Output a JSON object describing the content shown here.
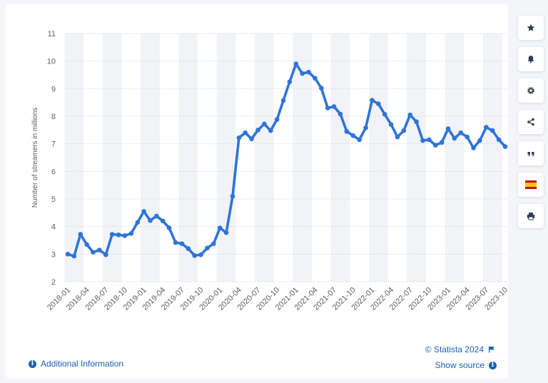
{
  "chart_data": {
    "type": "line",
    "title": "",
    "xlabel": "",
    "ylabel": "Number of streamers in millions",
    "ylim": [
      2,
      11
    ],
    "yticks": [
      2,
      3,
      4,
      5,
      6,
      7,
      8,
      9,
      10,
      11
    ],
    "grid": true,
    "line_color": "#2f74d9",
    "xtick_labels": [
      "2018-01",
      "2018-04",
      "2018-07",
      "2018-10",
      "2019-01",
      "2019-04",
      "2019-07",
      "2019-10",
      "2020-01",
      "2020-04",
      "2020-07",
      "2020-10",
      "2021-01",
      "2021-04",
      "2021-07",
      "2021-10",
      "2022-01",
      "2022-04",
      "2022-07",
      "2022-10",
      "2023-01",
      "2023-04",
      "2023-07",
      "2023-10"
    ],
    "x": [
      "2018-01",
      "2018-02",
      "2018-03",
      "2018-04",
      "2018-05",
      "2018-06",
      "2018-07",
      "2018-08",
      "2018-09",
      "2018-10",
      "2018-11",
      "2018-12",
      "2019-01",
      "2019-02",
      "2019-03",
      "2019-04",
      "2019-05",
      "2019-06",
      "2019-07",
      "2019-08",
      "2019-09",
      "2019-10",
      "2019-11",
      "2019-12",
      "2020-01",
      "2020-02",
      "2020-03",
      "2020-04",
      "2020-05",
      "2020-06",
      "2020-07",
      "2020-08",
      "2020-09",
      "2020-10",
      "2020-11",
      "2020-12",
      "2021-01",
      "2021-02",
      "2021-03",
      "2021-04",
      "2021-05",
      "2021-06",
      "2021-07",
      "2021-08",
      "2021-09",
      "2021-10",
      "2021-11",
      "2021-12",
      "2022-01",
      "2022-02",
      "2022-03",
      "2022-04",
      "2022-05",
      "2022-06",
      "2022-07",
      "2022-08",
      "2022-09",
      "2022-10",
      "2022-11",
      "2022-12",
      "2023-01",
      "2023-02",
      "2023-03",
      "2023-04",
      "2023-05",
      "2023-06",
      "2023-07",
      "2023-08",
      "2023-09",
      "2023-10"
    ],
    "series": [
      {
        "name": "",
        "values": [
          3.0,
          2.93,
          3.72,
          3.35,
          3.07,
          3.15,
          2.98,
          3.72,
          3.7,
          3.67,
          3.75,
          4.15,
          4.55,
          4.22,
          4.38,
          4.2,
          3.95,
          3.42,
          3.38,
          3.2,
          2.95,
          2.98,
          3.22,
          3.38,
          3.95,
          3.78,
          5.1,
          7.22,
          7.4,
          7.18,
          7.5,
          7.72,
          7.48,
          7.88,
          8.57,
          9.25,
          9.9,
          9.55,
          9.6,
          9.38,
          9.02,
          8.3,
          8.35,
          8.08,
          7.45,
          7.3,
          7.15,
          7.58,
          8.58,
          8.45,
          8.07,
          7.7,
          7.25,
          7.48,
          8.05,
          7.8,
          7.12,
          7.15,
          6.95,
          7.05,
          7.55,
          7.2,
          7.4,
          7.25,
          6.85,
          7.12,
          7.6,
          7.48,
          7.15,
          6.9
        ]
      }
    ]
  },
  "toolbar": [
    {
      "icon": "star-icon",
      "name": "favorite-button"
    },
    {
      "icon": "bell-icon",
      "name": "notification-button"
    },
    {
      "icon": "gear-icon",
      "name": "settings-button"
    },
    {
      "icon": "share-icon",
      "name": "share-button"
    },
    {
      "icon": "quote-icon",
      "name": "cite-button"
    },
    {
      "icon": "spain-flag-icon",
      "name": "language-button"
    },
    {
      "icon": "printer-icon",
      "name": "print-button"
    }
  ],
  "footer": {
    "additional_info": "Additional Information",
    "copyright": "© Statista 2024",
    "show_source": "Show source"
  },
  "colors": {
    "accent": "#1a5fb4",
    "line": "#2f74d9",
    "band": "#f1f3f6"
  }
}
